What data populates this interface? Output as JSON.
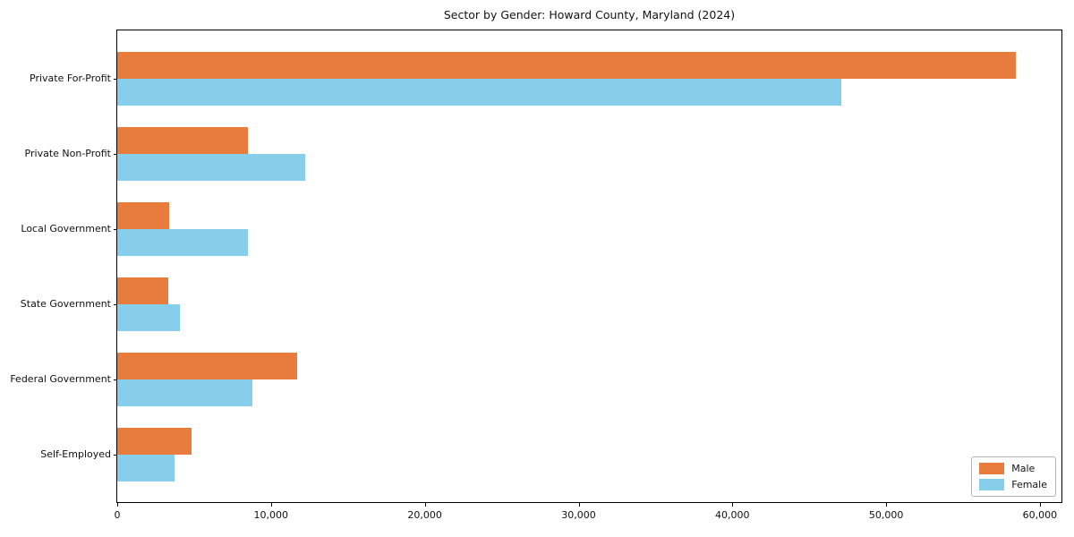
{
  "title": "Sector by Gender: Howard County, Maryland (2024)",
  "colors": {
    "male_bar": "#e87c3c",
    "female_bar": "#87ceeb",
    "axis": "#000000",
    "legend_border": "#b3b3b3",
    "background": "#ffffff"
  },
  "legend": {
    "position": "lower right",
    "items": [
      {
        "label": "Male",
        "color": "#e87c3c"
      },
      {
        "label": "Female",
        "color": "#87ceeb"
      }
    ]
  },
  "chart_data": {
    "type": "bar",
    "orientation": "horizontal",
    "title": "Sector by Gender: Howard County, Maryland (2024)",
    "categories": [
      "Private For-Profit",
      "Private Non-Profit",
      "Local Government",
      "State Government",
      "Federal Government",
      "Self-Employed"
    ],
    "series": [
      {
        "name": "Male",
        "color": "#e87c3c",
        "values": [
          58400,
          8500,
          3400,
          3300,
          11700,
          4800
        ]
      },
      {
        "name": "Female",
        "color": "#87ceeb",
        "values": [
          47100,
          12200,
          8500,
          4100,
          8800,
          3700
        ]
      }
    ],
    "xlabel": "",
    "ylabel": "",
    "xlim": [
      0,
      61400
    ],
    "x_ticks": [
      0,
      10000,
      20000,
      30000,
      40000,
      50000,
      60000
    ],
    "x_tick_labels": [
      "0",
      "10,000",
      "20,000",
      "30,000",
      "40,000",
      "50,000",
      "60,000"
    ],
    "grid": false,
    "legend_position": "lower right"
  }
}
